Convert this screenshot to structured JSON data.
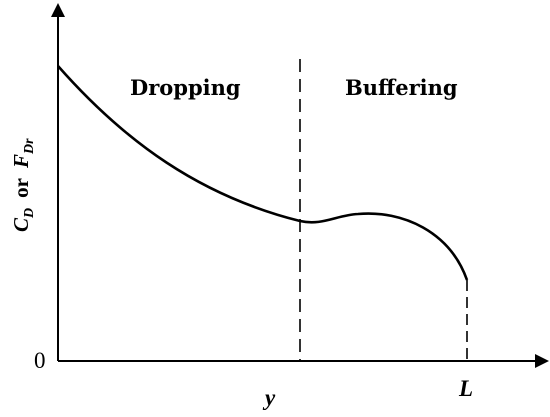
{
  "diagram": {
    "regions": {
      "left": "Dropping",
      "right": "Buffering"
    },
    "y_axis_label": {
      "c": "C",
      "c_sub": "D",
      "or": "or",
      "f": "F",
      "f_sub": "Dr"
    },
    "origin_label": "0",
    "x_marks": {
      "boundary": "y",
      "end": "L"
    }
  }
}
